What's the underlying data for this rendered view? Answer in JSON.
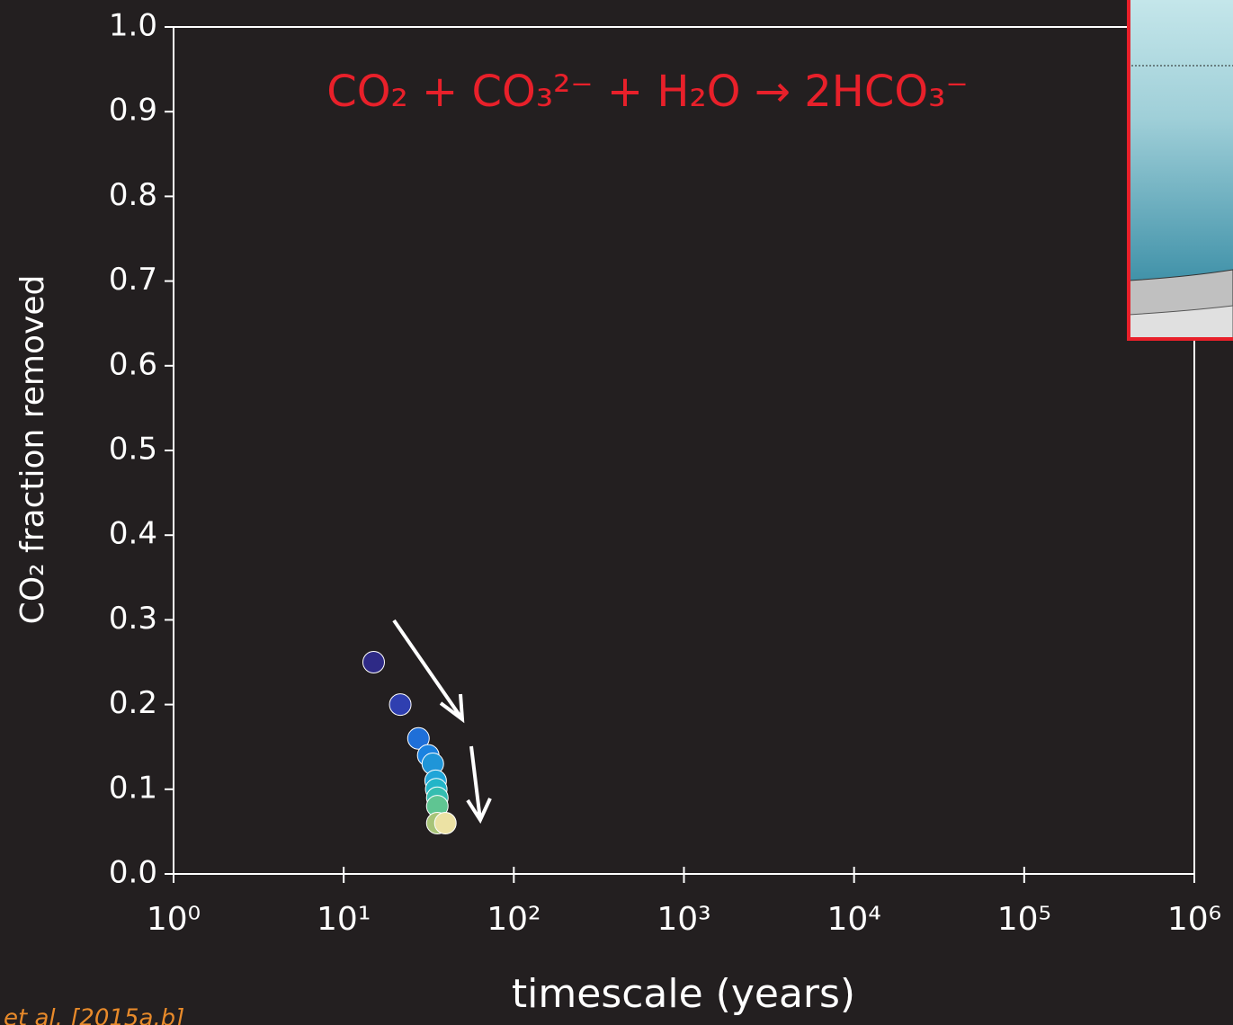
{
  "chart_data": {
    "type": "scatter",
    "annotation": "CO₂ + CO₃²⁻ + H₂O → 2HCO₃⁻",
    "xlabel": "timescale (years)",
    "ylabel": "CO₂ fraction removed",
    "citation": "et al. [2015a,b]",
    "x": [
      15,
      21.5,
      27.5,
      31.4,
      33.4,
      34.7,
      35,
      35.5,
      35.5,
      35.5,
      39.6
    ],
    "values": [
      0.25,
      0.2,
      0.16,
      0.14,
      0.13,
      0.11,
      0.1,
      0.09,
      0.08,
      0.06,
      0.06
    ],
    "colors": [
      "#2e2a86",
      "#2f3fb0",
      "#1f6fd8",
      "#1a82e0",
      "#1f95d8",
      "#20a5d8",
      "#22b5c8",
      "#35bdb0",
      "#5fc592",
      "#a8c478",
      "#ece2a4"
    ],
    "xlog": true,
    "xlim": [
      1,
      1000000
    ],
    "ylim": [
      0,
      1
    ],
    "xticks": [
      {
        "value": 1,
        "label": "10⁰"
      },
      {
        "value": 10,
        "label": "10¹"
      },
      {
        "value": 100,
        "label": "10²"
      },
      {
        "value": 1000,
        "label": "10³"
      },
      {
        "value": 10000,
        "label": "10⁴"
      },
      {
        "value": 100000,
        "label": "10⁵"
      },
      {
        "value": 1000000,
        "label": "10⁶"
      }
    ],
    "yticks": [
      {
        "value": 0,
        "label": "0.0"
      },
      0.1,
      0.2,
      0.3,
      0.4,
      0.5,
      0.6,
      0.7,
      0.8,
      0.9,
      {
        "value": 1,
        "label": "1.0"
      }
    ]
  }
}
